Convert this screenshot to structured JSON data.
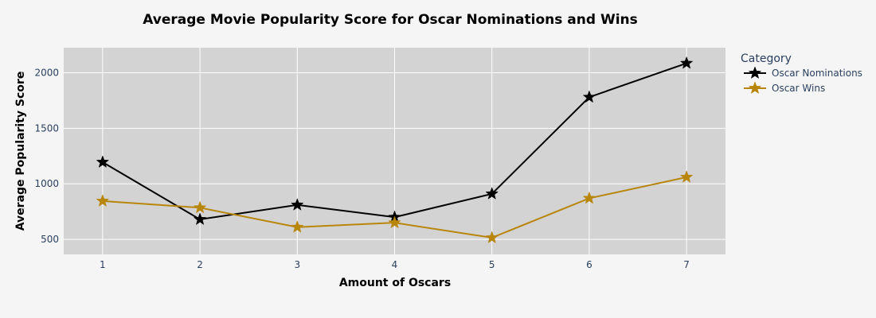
{
  "chart_data": {
    "type": "line",
    "title": "Average Movie Popularity Score for Oscar Nominations and Wins",
    "xlabel": "Amount of Oscars",
    "ylabel": "Average Popularity Score",
    "x": [
      1,
      2,
      3,
      4,
      5,
      6,
      7
    ],
    "x_ticks": [
      "1",
      "2",
      "3",
      "4",
      "5",
      "6",
      "7"
    ],
    "xlim": [
      0.6,
      7.4
    ],
    "y_ticks": [
      500,
      1000,
      1500,
      2000
    ],
    "ylim": [
      365,
      2225
    ],
    "grid": true,
    "legend": {
      "title": "Category",
      "position": "right"
    },
    "marker": "star",
    "series": [
      {
        "name": "Oscar Nominations",
        "color": "#000000",
        "values": [
          1195,
          680,
          810,
          700,
          910,
          1780,
          2085
        ]
      },
      {
        "name": "Oscar Wins",
        "color": "#b8860b",
        "values": [
          845,
          785,
          610,
          650,
          515,
          870,
          1060
        ]
      }
    ]
  },
  "colors": {
    "plot_bg": "#d3d3d3",
    "paper_bg": "#f5f5f5",
    "grid": "#ffffff"
  }
}
